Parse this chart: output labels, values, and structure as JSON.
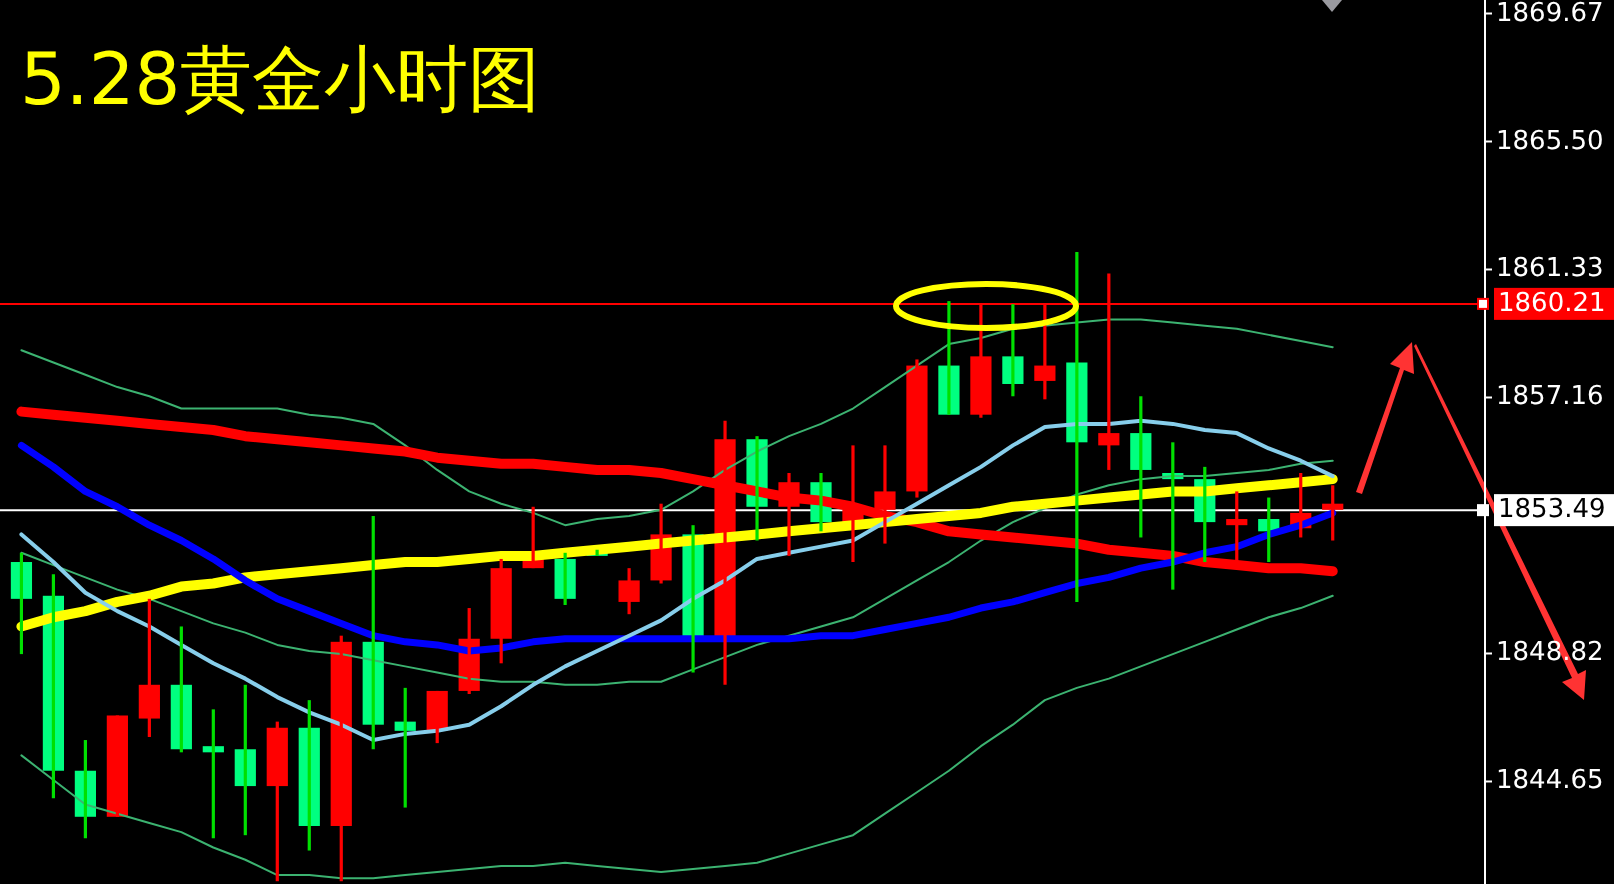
{
  "chart_data": {
    "type": "candlestick",
    "title": "5.28黄金小时图",
    "categories": [
      null,
      null,
      null,
      null,
      null,
      null,
      null,
      null,
      null,
      null,
      null,
      null,
      null,
      null,
      null,
      null,
      null,
      null,
      null,
      null,
      null,
      null,
      null,
      null,
      null,
      null,
      null,
      null,
      null,
      null,
      null,
      null,
      null,
      null,
      null,
      null,
      null,
      null,
      null,
      null,
      null,
      null
    ],
    "ohlc": [
      [
        1850.6,
        1852.1,
        1848.8,
        1851.8
      ],
      [
        1845.0,
        1851.4,
        1844.1,
        1850.7
      ],
      [
        1843.5,
        1846.0,
        1842.8,
        1845.0
      ],
      [
        1846.8,
        1846.8,
        1843.5,
        1843.5
      ],
      [
        1847.8,
        1850.6,
        1846.1,
        1846.7
      ],
      [
        1845.7,
        1849.7,
        1845.6,
        1847.8
      ],
      [
        1845.6,
        1847.0,
        1842.8,
        1845.8
      ],
      [
        1844.5,
        1847.8,
        1842.9,
        1845.7
      ],
      [
        1846.4,
        1846.6,
        1841.4,
        1844.5
      ],
      [
        1843.2,
        1847.3,
        1842.4,
        1846.4
      ],
      [
        1849.2,
        1849.4,
        1841.4,
        1843.2
      ],
      [
        1846.5,
        1853.3,
        1845.7,
        1849.2
      ],
      [
        1846.3,
        1847.7,
        1843.8,
        1846.6
      ],
      [
        1847.6,
        1847.6,
        1845.9,
        1846.3
      ],
      [
        1849.3,
        1850.3,
        1847.5,
        1847.6
      ],
      [
        1851.6,
        1851.9,
        1848.5,
        1849.3
      ],
      [
        1851.9,
        1853.6,
        1851.6,
        1851.6
      ],
      [
        1850.6,
        1852.1,
        1850.4,
        1851.9
      ],
      [
        1852.0,
        1852.2,
        1852.0,
        1852.1
      ],
      [
        1851.2,
        1851.6,
        1850.1,
        1850.5
      ],
      [
        1852.7,
        1853.7,
        1851.1,
        1851.2
      ],
      [
        1849.3,
        1853.0,
        1848.2,
        1852.7
      ],
      [
        1855.8,
        1856.4,
        1847.8,
        1849.3
      ],
      [
        1853.6,
        1855.9,
        1852.5,
        1855.8
      ],
      [
        1854.4,
        1854.7,
        1852.0,
        1853.6
      ],
      [
        1853.1,
        1854.7,
        1852.8,
        1854.4
      ],
      [
        1853.5,
        1855.6,
        1851.8,
        1853.1
      ],
      [
        1854.1,
        1855.6,
        1852.4,
        1853.5
      ],
      [
        1858.2,
        1858.4,
        1853.9,
        1854.1
      ],
      [
        1856.6,
        1860.3,
        1856.6,
        1858.2
      ],
      [
        1858.5,
        1860.2,
        1856.5,
        1856.6
      ],
      [
        1857.6,
        1860.2,
        1857.2,
        1858.5
      ],
      [
        1858.2,
        1860.2,
        1857.1,
        1857.7
      ],
      [
        1855.7,
        1861.9,
        1850.5,
        1858.3
      ],
      [
        1856.0,
        1861.2,
        1854.8,
        1855.6
      ],
      [
        1854.8,
        1857.2,
        1852.6,
        1856.0
      ],
      [
        1854.5,
        1855.7,
        1850.9,
        1854.7
      ],
      [
        1853.1,
        1854.9,
        1851.8,
        1854.5
      ],
      [
        1853.2,
        1854.1,
        1851.8,
        1853.0
      ],
      [
        1852.8,
        1853.9,
        1851.8,
        1853.2
      ],
      [
        1853.4,
        1854.7,
        1852.6,
        1852.9
      ],
      [
        1853.7,
        1854.3,
        1852.5,
        1853.5
      ]
    ],
    "colors": [
      "#00ff80",
      "#00ff80",
      "#00ff80",
      "#ff0000",
      "#ff0000",
      "#00ff80",
      "#00ff80",
      "#00ff80",
      "#ff0000",
      "#00ff80",
      "#ff0000",
      "#00ff80",
      "#00ff80",
      "#ff0000",
      "#ff0000",
      "#ff0000",
      "#ff0000",
      "#00ff80",
      "#00ff80",
      "#ff0000",
      "#ff0000",
      "#00ff80",
      "#ff0000",
      "#00ff80",
      "#ff0000",
      "#00ff80",
      "#ff0000",
      "#ff0000",
      "#ff0000",
      "#00ff80",
      "#ff0000",
      "#00ff80",
      "#ff0000",
      "#00ff80",
      "#ff0000",
      "#00ff80",
      "#00ff80",
      "#00ff80",
      "#ff0000",
      "#00ff80",
      "#ff0000",
      "#ff0000"
    ],
    "series": [
      {
        "type": "line",
        "color": "#3cb371",
        "values": [
          1858.7,
          1858.3,
          1857.9,
          1857.5,
          1857.2,
          1856.8,
          1856.8,
          1856.8,
          1856.8,
          1856.6,
          1856.5,
          1856.3,
          1855.6,
          1854.8,
          1854.1,
          1853.7,
          1853.4,
          1853.0,
          1853.2,
          1853.3,
          1853.5,
          1854.1,
          1854.8,
          1855.4,
          1855.9,
          1856.3,
          1856.8,
          1857.5,
          1858.2,
          1858.9,
          1859.1,
          1859.4,
          null,
          1859.6,
          1859.7,
          1859.7,
          1859.6,
          1859.5,
          1859.4,
          1859.2,
          1859.0,
          1858.8
        ]
      },
      {
        "type": "line",
        "color": "#3cb371",
        "values": [
          1852.1,
          1851.7,
          1851.3,
          1850.9,
          1850.6,
          1850.2,
          1849.8,
          1849.5,
          1849.1,
          1848.9,
          1848.8,
          1848.6,
          1848.4,
          1848.2,
          1848.0,
          1847.9,
          1847.9,
          1847.8,
          1847.8,
          1847.9,
          1847.9,
          1848.3,
          1848.7,
          1849.1,
          1849.4,
          1849.7,
          1850.0,
          1850.6,
          1851.2,
          1851.8,
          1852.5,
          1853.1,
          null,
          1854.0,
          1854.3,
          1854.5,
          1854.6,
          1854.6,
          1854.7,
          1854.8,
          1855.0,
          1855.1
        ]
      },
      {
        "type": "line",
        "color": "#3cb371",
        "values": [
          1845.5,
          1844.7,
          1843.9,
          1843.6,
          1843.3,
          1843.0,
          1842.5,
          1842.1,
          1841.6,
          1841.6,
          1841.5,
          1841.5,
          1841.6,
          1841.7,
          1841.8,
          1841.9,
          1841.9,
          1842.0,
          1841.9,
          1841.8,
          1841.7,
          1841.8,
          1841.9,
          1842.0,
          1842.3,
          1842.6,
          1842.9,
          1843.6,
          1844.3,
          1845.0,
          1845.8,
          1846.5,
          1847.3,
          1847.7,
          1848.0,
          1848.4,
          1848.8,
          1849.2,
          1849.6,
          1850.0,
          1850.3,
          1850.7
        ]
      },
      {
        "type": "line",
        "color": "#ff0000",
        "values": [
          1856.7,
          1856.6,
          1856.5,
          1856.4,
          1856.3,
          1856.2,
          1856.1,
          1855.9,
          1855.8,
          1855.7,
          1855.6,
          1855.5,
          1855.4,
          1855.2,
          1855.1,
          1855.0,
          1855.0,
          1854.9,
          1854.8,
          1854.8,
          1854.7,
          1854.5,
          1854.3,
          1854.1,
          1853.9,
          1853.8,
          1853.6,
          1853.3,
          1853.1,
          1852.8,
          1852.7,
          1852.6,
          1852.5,
          1852.4,
          1852.2,
          1852.1,
          1852.0,
          1851.8,
          1851.7,
          1851.6,
          1851.6,
          1851.5
        ]
      },
      {
        "type": "line",
        "color": "#ffff00",
        "values": [
          1849.7,
          1850.0,
          1850.2,
          1850.5,
          1850.7,
          1851.0,
          1851.1,
          1851.3,
          1851.4,
          1851.5,
          1851.6,
          1851.7,
          1851.8,
          1851.8,
          1851.9,
          1852.0,
          1852.0,
          1852.1,
          1852.2,
          1852.3,
          1852.4,
          1852.5,
          1852.6,
          1852.7,
          1852.8,
          1852.9,
          1853.0,
          1853.1,
          1853.2,
          1853.3,
          1853.4,
          1853.6,
          1853.7,
          1853.8,
          1853.9,
          1854.0,
          1854.1,
          1854.1,
          1854.2,
          1854.3,
          1854.4,
          1854.5
        ]
      },
      {
        "type": "line",
        "color": "#0000ff",
        "values": [
          1855.6,
          1854.9,
          1854.1,
          1853.6,
          1853.0,
          1852.5,
          1851.9,
          1851.2,
          1850.6,
          1850.2,
          1849.8,
          1849.4,
          1849.2,
          1849.1,
          1848.9,
          1849.0,
          1849.2,
          1849.3,
          1849.3,
          1849.3,
          1849.3,
          1849.3,
          1849.3,
          1849.3,
          1849.3,
          1849.4,
          1849.4,
          1849.6,
          1849.8,
          1850.0,
          1850.3,
          1850.5,
          1850.8,
          1851.1,
          1851.3,
          1851.6,
          1851.8,
          1852.1,
          1852.3,
          1852.7,
          1853.0,
          1853.4
        ]
      },
      {
        "type": "line",
        "color": "#87ceeb",
        "values": [
          1852.7,
          1851.8,
          1850.8,
          1850.2,
          1849.7,
          1849.1,
          1848.5,
          1848.0,
          1847.4,
          1846.9,
          1846.5,
          1846.0,
          1846.2,
          1846.3,
          1846.5,
          1847.1,
          1847.8,
          1848.4,
          1848.9,
          1849.4,
          1849.9,
          1850.6,
          1851.2,
          1851.9,
          1852.1,
          1852.3,
          1852.5,
          1853.1,
          1853.7,
          1854.3,
          1854.9,
          1855.6,
          1856.2,
          1856.3,
          1856.3,
          1856.4,
          1856.3,
          1856.1,
          1856.0,
          1855.5,
          1855.1,
          1854.6
        ]
      }
    ],
    "ylim": [
      1841.31,
      1870.11
    ],
    "yticks": [
      {
        "value": 1844.65,
        "label": "1844.65"
      },
      {
        "value": 1848.82,
        "label": "1848.82"
      },
      {
        "value": 1857.16,
        "label": "1857.16"
      },
      {
        "value": 1861.33,
        "label": "1861.33"
      },
      {
        "value": 1865.5,
        "label": "1865.50"
      },
      {
        "value": 1869.67,
        "label": "1869.67"
      }
    ],
    "ref_lines": [
      {
        "axis": "y",
        "value": 1860.21,
        "label": "1860.21",
        "color": "#ff0000"
      },
      {
        "axis": "y",
        "value": 1853.49,
        "label": "1853.49",
        "color": "#ffffff"
      }
    ],
    "tick_labels": "y"
  }
}
